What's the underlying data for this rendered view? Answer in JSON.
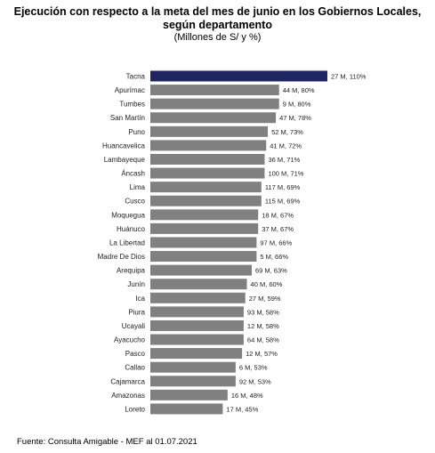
{
  "title_line1": "Ejecución con respecto a la meta del mes de junio en los Gobiernos Locales,",
  "title_line2": "según departamento",
  "subtitle": "(Millones de S/ y %)",
  "source": "Fuente: Consulta Amigable - MEF al 01.07.2021",
  "colors": {
    "highlight": "#1f2462",
    "bar": "#808080"
  },
  "chart_data": {
    "type": "bar",
    "orientation": "horizontal",
    "categories": [
      "Tacna",
      "Apurímac",
      "Tumbes",
      "San Martín",
      "Puno",
      "Huancavelica",
      "Lambayeque",
      "Áncash",
      "Lima",
      "Cusco",
      "Moquegua",
      "Huánuco",
      "La Libertad",
      "Madre De Dios",
      "Arequipa",
      "Junín",
      "Ica",
      "Piura",
      "Ucayali",
      "Ayacucho",
      "Pasco",
      "Callao",
      "Cajamarca",
      "Amazonas",
      "Loreto"
    ],
    "values": [
      110,
      80,
      80,
      78,
      73,
      72,
      71,
      71,
      69,
      69,
      67,
      67,
      66,
      66,
      63,
      60,
      59,
      58,
      58,
      58,
      57,
      53,
      53,
      48,
      45
    ],
    "labels": [
      "27 M, 110%",
      "44 M, 80%",
      "9 M, 80%",
      "47 M, 78%",
      "52 M, 73%",
      "41 M, 72%",
      "36 M, 71%",
      "100 M, 71%",
      "117 M, 69%",
      "115 M, 69%",
      "18 M, 67%",
      "37 M, 67%",
      "97 M, 66%",
      "5 M, 66%",
      "69 M, 63%",
      "40 M, 60%",
      "27 M, 59%",
      "93 M, 58%",
      "12 M, 58%",
      "64 M, 58%",
      "12 M, 57%",
      "6 M, 53%",
      "92 M, 53%",
      "16 M, 48%",
      "17 M, 45%"
    ],
    "highlight_index": 0,
    "xlim": [
      0,
      110
    ],
    "grid": false
  }
}
